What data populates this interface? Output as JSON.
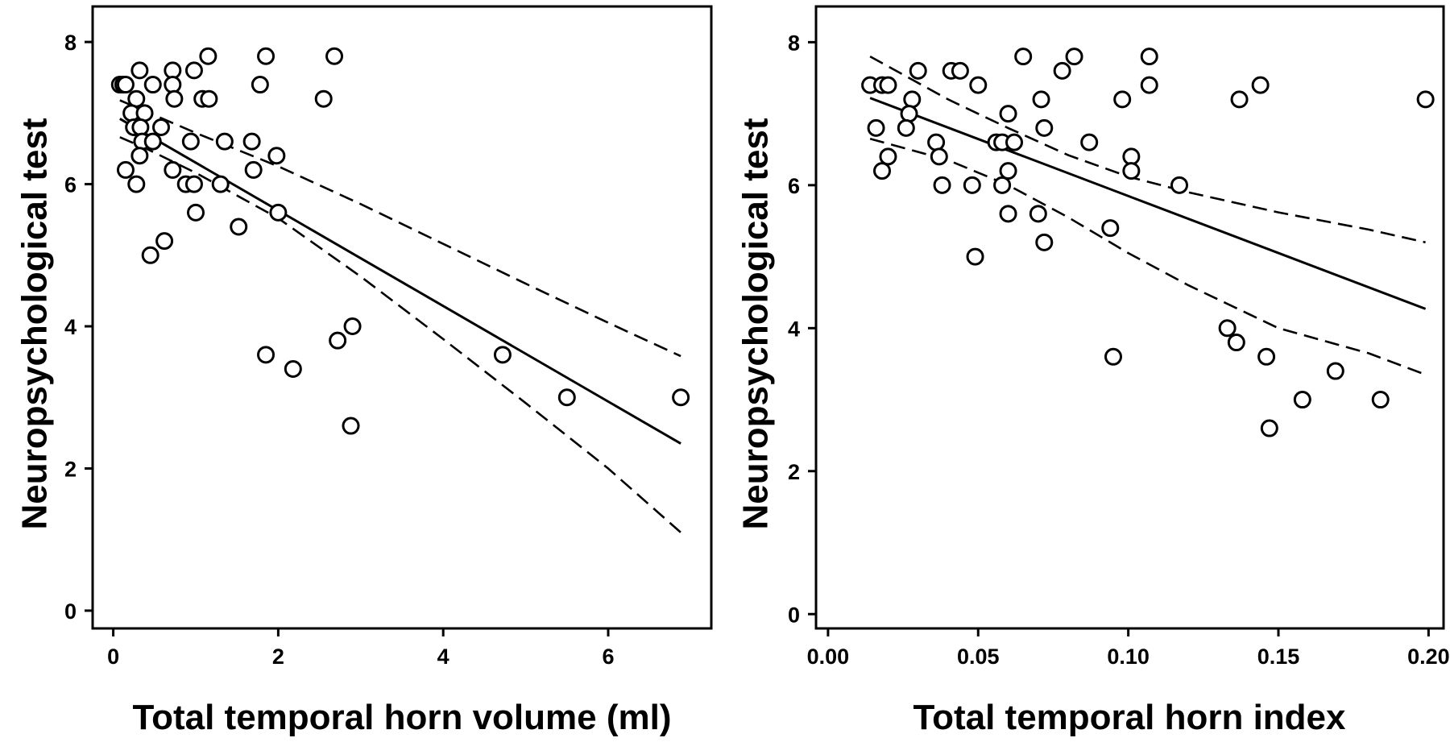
{
  "chart_data": [
    {
      "type": "scatter",
      "xlabel": "Total temporal horn volume (ml)",
      "ylabel": "Neuropsychological test",
      "xlim": [
        -0.25,
        7.25
      ],
      "ylim": [
        -0.25,
        8.5
      ],
      "xticks": [
        0,
        2,
        4,
        6
      ],
      "yticks": [
        0,
        2,
        4,
        6,
        8
      ],
      "xtick_labels": [
        "0",
        "2",
        "4",
        "6"
      ],
      "ytick_labels": [
        "0",
        "2",
        "4",
        "6",
        "8"
      ],
      "grid": false,
      "points": [
        {
          "x": 0.08,
          "y": 7.4
        },
        {
          "x": 0.12,
          "y": 7.4
        },
        {
          "x": 0.15,
          "y": 7.4
        },
        {
          "x": 0.32,
          "y": 7.6
        },
        {
          "x": 0.48,
          "y": 7.4
        },
        {
          "x": 0.28,
          "y": 7.2
        },
        {
          "x": 0.22,
          "y": 7.0
        },
        {
          "x": 0.38,
          "y": 7.0
        },
        {
          "x": 0.25,
          "y": 6.8
        },
        {
          "x": 0.33,
          "y": 6.8
        },
        {
          "x": 0.58,
          "y": 6.8
        },
        {
          "x": 0.35,
          "y": 6.6
        },
        {
          "x": 0.48,
          "y": 6.6
        },
        {
          "x": 0.32,
          "y": 6.4
        },
        {
          "x": 0.15,
          "y": 6.2
        },
        {
          "x": 0.28,
          "y": 6.0
        },
        {
          "x": 0.72,
          "y": 7.6
        },
        {
          "x": 0.72,
          "y": 7.4
        },
        {
          "x": 0.74,
          "y": 7.2
        },
        {
          "x": 0.98,
          "y": 7.6
        },
        {
          "x": 1.15,
          "y": 7.8
        },
        {
          "x": 1.08,
          "y": 7.2
        },
        {
          "x": 1.16,
          "y": 7.2
        },
        {
          "x": 0.94,
          "y": 6.6
        },
        {
          "x": 0.72,
          "y": 6.2
        },
        {
          "x": 0.88,
          "y": 6.0
        },
        {
          "x": 0.98,
          "y": 6.0
        },
        {
          "x": 1.0,
          "y": 5.6
        },
        {
          "x": 0.62,
          "y": 5.2
        },
        {
          "x": 0.45,
          "y": 5.0
        },
        {
          "x": 1.3,
          "y": 6.0
        },
        {
          "x": 1.35,
          "y": 6.6
        },
        {
          "x": 1.52,
          "y": 5.4
        },
        {
          "x": 1.68,
          "y": 6.6
        },
        {
          "x": 1.7,
          "y": 6.2
        },
        {
          "x": 1.85,
          "y": 7.8
        },
        {
          "x": 1.78,
          "y": 7.4
        },
        {
          "x": 1.98,
          "y": 6.4
        },
        {
          "x": 2.0,
          "y": 5.6
        },
        {
          "x": 1.85,
          "y": 3.6
        },
        {
          "x": 2.18,
          "y": 3.4
        },
        {
          "x": 2.55,
          "y": 7.2
        },
        {
          "x": 2.68,
          "y": 7.8
        },
        {
          "x": 2.72,
          "y": 3.8
        },
        {
          "x": 2.9,
          "y": 4.0
        },
        {
          "x": 2.88,
          "y": 2.6
        },
        {
          "x": 4.72,
          "y": 3.6
        },
        {
          "x": 5.5,
          "y": 3.0
        },
        {
          "x": 6.88,
          "y": 3.0
        }
      ],
      "fit_line": {
        "x": [
          0.08,
          6.88
        ],
        "y": [
          6.92,
          2.35
        ]
      },
      "confidence_upper": {
        "x": [
          0.08,
          0.4,
          1.0,
          2.0,
          3.0,
          4.0,
          5.0,
          6.0,
          6.88
        ],
        "y": [
          7.18,
          7.02,
          6.72,
          6.25,
          5.72,
          5.16,
          4.6,
          4.05,
          3.58
        ]
      },
      "confidence_lower": {
        "x": [
          0.08,
          0.4,
          1.0,
          2.0,
          3.0,
          4.0,
          5.0,
          6.0,
          6.88
        ],
        "y": [
          6.66,
          6.5,
          6.16,
          5.52,
          4.7,
          3.82,
          2.92,
          2.0,
          1.1
        ]
      }
    },
    {
      "type": "scatter",
      "xlabel": "Total temporal horn index",
      "ylabel": "Neuropsychological test",
      "xlim": [
        -0.004,
        0.205
      ],
      "ylim": [
        -0.2,
        8.5
      ],
      "xticks": [
        0.0,
        0.05,
        0.1,
        0.15,
        0.2
      ],
      "yticks": [
        0,
        2,
        4,
        6,
        8
      ],
      "xtick_labels": [
        "0.00",
        "0.05",
        "0.10",
        "0.15",
        "0.20"
      ],
      "ytick_labels": [
        "0",
        "2",
        "4",
        "6",
        "8"
      ],
      "grid": false,
      "points": [
        {
          "x": 0.014,
          "y": 7.4
        },
        {
          "x": 0.018,
          "y": 7.4
        },
        {
          "x": 0.02,
          "y": 7.4
        },
        {
          "x": 0.016,
          "y": 6.8
        },
        {
          "x": 0.018,
          "y": 6.2
        },
        {
          "x": 0.02,
          "y": 6.4
        },
        {
          "x": 0.03,
          "y": 7.6
        },
        {
          "x": 0.028,
          "y": 7.2
        },
        {
          "x": 0.027,
          "y": 7.0
        },
        {
          "x": 0.026,
          "y": 6.8
        },
        {
          "x": 0.036,
          "y": 6.6
        },
        {
          "x": 0.037,
          "y": 6.4
        },
        {
          "x": 0.038,
          "y": 6.0
        },
        {
          "x": 0.041,
          "y": 7.6
        },
        {
          "x": 0.044,
          "y": 7.6
        },
        {
          "x": 0.05,
          "y": 7.4
        },
        {
          "x": 0.048,
          "y": 6.0
        },
        {
          "x": 0.049,
          "y": 5.0
        },
        {
          "x": 0.056,
          "y": 6.6
        },
        {
          "x": 0.058,
          "y": 6.6
        },
        {
          "x": 0.058,
          "y": 6.0
        },
        {
          "x": 0.06,
          "y": 7.0
        },
        {
          "x": 0.062,
          "y": 6.6
        },
        {
          "x": 0.06,
          "y": 6.2
        },
        {
          "x": 0.06,
          "y": 5.6
        },
        {
          "x": 0.065,
          "y": 7.8
        },
        {
          "x": 0.071,
          "y": 7.2
        },
        {
          "x": 0.072,
          "y": 6.8
        },
        {
          "x": 0.07,
          "y": 5.6
        },
        {
          "x": 0.072,
          "y": 5.2
        },
        {
          "x": 0.078,
          "y": 7.6
        },
        {
          "x": 0.082,
          "y": 7.8
        },
        {
          "x": 0.087,
          "y": 6.6
        },
        {
          "x": 0.094,
          "y": 5.4
        },
        {
          "x": 0.095,
          "y": 3.6
        },
        {
          "x": 0.098,
          "y": 7.2
        },
        {
          "x": 0.101,
          "y": 6.4
        },
        {
          "x": 0.101,
          "y": 6.2
        },
        {
          "x": 0.107,
          "y": 7.8
        },
        {
          "x": 0.107,
          "y": 7.4
        },
        {
          "x": 0.117,
          "y": 6.0
        },
        {
          "x": 0.133,
          "y": 4.0
        },
        {
          "x": 0.136,
          "y": 3.8
        },
        {
          "x": 0.137,
          "y": 7.2
        },
        {
          "x": 0.144,
          "y": 7.4
        },
        {
          "x": 0.146,
          "y": 3.6
        },
        {
          "x": 0.147,
          "y": 2.6
        },
        {
          "x": 0.158,
          "y": 3.0
        },
        {
          "x": 0.169,
          "y": 3.4
        },
        {
          "x": 0.184,
          "y": 3.0
        },
        {
          "x": 0.199,
          "y": 7.2
        }
      ],
      "fit_line": {
        "x": [
          0.014,
          0.199
        ],
        "y": [
          7.22,
          4.27
        ]
      },
      "confidence_upper": {
        "x": [
          0.014,
          0.04,
          0.06,
          0.08,
          0.1,
          0.12,
          0.15,
          0.18,
          0.199
        ],
        "y": [
          7.8,
          7.2,
          6.8,
          6.42,
          6.12,
          5.9,
          5.62,
          5.38,
          5.2
        ]
      },
      "confidence_lower": {
        "x": [
          0.014,
          0.04,
          0.06,
          0.08,
          0.1,
          0.12,
          0.15,
          0.18,
          0.199
        ],
        "y": [
          6.65,
          6.35,
          6.0,
          5.55,
          5.05,
          4.6,
          4.0,
          3.65,
          3.35
        ]
      }
    }
  ]
}
